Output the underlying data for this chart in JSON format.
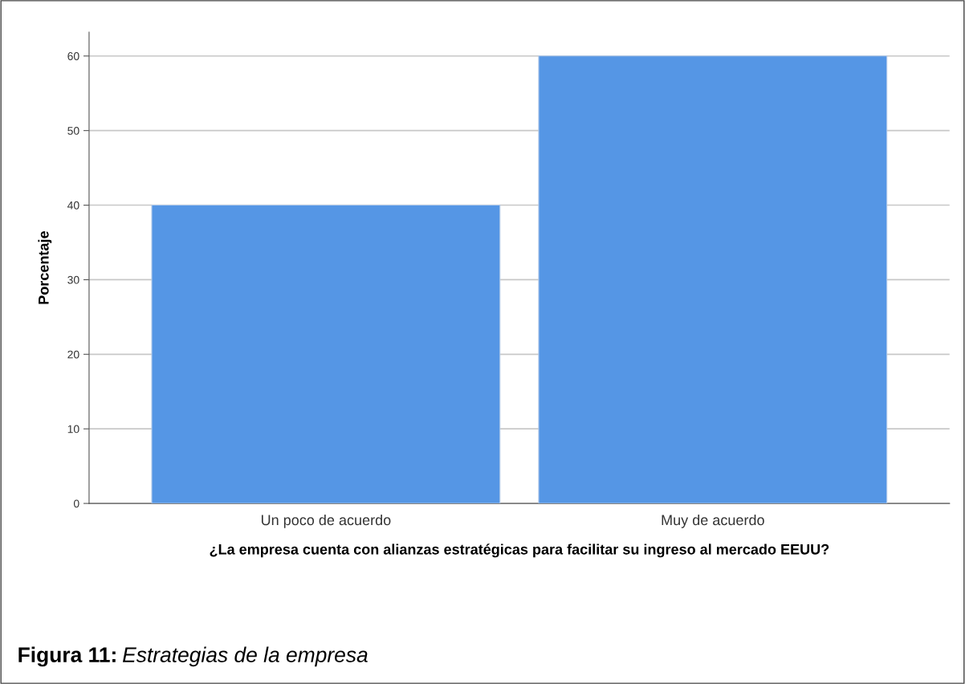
{
  "chart_data": {
    "type": "bar",
    "categories": [
      "Un poco de acuerdo",
      "Muy de acuerdo"
    ],
    "values": [
      40,
      60
    ],
    "color": "#5596e5",
    "xlabel": "¿La empresa cuenta con alianzas estratégicas para facilitar su ingreso al mercado EEUU?",
    "ylabel": "Porcentaje",
    "ylim": [
      0,
      63.2
    ],
    "yticks": [
      0,
      10,
      20,
      30,
      40,
      50,
      60
    ],
    "grid": "y",
    "annotations": [
      "Figura 11:",
      "Estrategias de la empresa"
    ]
  }
}
